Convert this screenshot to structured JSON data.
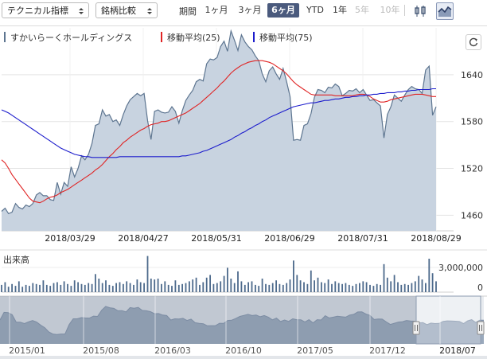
{
  "toolbar": {
    "technical": "テクニカル指標",
    "compare": "銘柄比較",
    "period_label": "期間",
    "periods": [
      {
        "label": "1ヶ月",
        "state": "normal"
      },
      {
        "label": "3ヶ月",
        "state": "normal"
      },
      {
        "label": "6ヶ月",
        "state": "active"
      },
      {
        "label": "YTD",
        "state": "normal"
      },
      {
        "label": "1年",
        "state": "normal"
      },
      {
        "label": "5年",
        "state": "disabled"
      },
      {
        "label": "10年",
        "state": "disabled"
      }
    ],
    "chart_type_icons": [
      "candlestick-icon",
      "area-chart-icon"
    ],
    "active_chart_type": "area-chart-icon",
    "refresh_icon": "refresh-icon"
  },
  "colors": {
    "price": "#5d7590",
    "area_fill": "#c8d3e0",
    "ma25": "#e02424",
    "ma75": "#1c1ccc",
    "volume": "#4d6a8c",
    "active_tab": "#4a5a7d"
  },
  "chart_data": [
    {
      "type": "area",
      "legend": [
        {
          "name": "すかいらーくホールディングス",
          "color": "#5d7590"
        },
        {
          "name": "移動平均(25)",
          "color": "#e02424"
        },
        {
          "name": "移動平均(75)",
          "color": "#1c1ccc"
        }
      ],
      "x_ticks": [
        "2018/03/29",
        "2018/04/27",
        "2018/05/31",
        "2018/06/29",
        "2018/07/31",
        "2018/08/29"
      ],
      "y_ticks": [
        1460,
        1520,
        1580,
        1640
      ],
      "ylim": [
        1440,
        1700
      ],
      "series": [
        {
          "name": "すかいらーくホールディングス",
          "values": [
            1465,
            1469,
            1462,
            1464,
            1475,
            1470,
            1468,
            1473,
            1471,
            1475,
            1486,
            1489,
            1485,
            1485,
            1480,
            1479,
            1502,
            1487,
            1502,
            1497,
            1522,
            1509,
            1520,
            1536,
            1531,
            1538,
            1552,
            1575,
            1577,
            1595,
            1587,
            1589,
            1580,
            1582,
            1575,
            1589,
            1600,
            1608,
            1612,
            1616,
            1613,
            1616,
            1581,
            1557,
            1593,
            1595,
            1592,
            1591,
            1592,
            1599,
            1593,
            1578,
            1594,
            1607,
            1614,
            1620,
            1631,
            1634,
            1632,
            1654,
            1660,
            1659,
            1662,
            1676,
            1683,
            1670,
            1696,
            1684,
            1671,
            1691,
            1682,
            1676,
            1672,
            1664,
            1658,
            1641,
            1631,
            1645,
            1650,
            1641,
            1634,
            1648,
            1631,
            1612,
            1556,
            1557,
            1556,
            1575,
            1577,
            1590,
            1611,
            1621,
            1620,
            1617,
            1624,
            1623,
            1628,
            1625,
            1613,
            1616,
            1620,
            1619,
            1622,
            1617,
            1621,
            1614,
            1607,
            1608,
            1604,
            1600,
            1559,
            1589,
            1599,
            1614,
            1610,
            1606,
            1614,
            1621,
            1625,
            1622,
            1621,
            1616,
            1646,
            1651,
            1588,
            1599
          ]
        },
        {
          "name": "移動平均(25)",
          "values": [
            1531,
            1527,
            1520,
            1512,
            1506,
            1500,
            1494,
            1488,
            1482,
            1478,
            1477,
            1476,
            1478,
            1481,
            1483,
            1484,
            1486,
            1489,
            1491,
            1493,
            1496,
            1499,
            1502,
            1505,
            1508,
            1511,
            1514,
            1518,
            1521,
            1525,
            1530,
            1535,
            1539,
            1544,
            1548,
            1553,
            1556,
            1560,
            1563,
            1566,
            1569,
            1571,
            1574,
            1576,
            1577,
            1578,
            1580,
            1580,
            1581,
            1583,
            1585,
            1587,
            1589,
            1591,
            1594,
            1597,
            1600,
            1603,
            1607,
            1611,
            1615,
            1619,
            1623,
            1628,
            1632,
            1637,
            1642,
            1646,
            1649,
            1652,
            1654,
            1656,
            1657,
            1658,
            1658,
            1658,
            1657,
            1656,
            1654,
            1651,
            1648,
            1645,
            1641,
            1636,
            1631,
            1627,
            1624,
            1621,
            1618,
            1615,
            1614,
            1614,
            1614,
            1614,
            1614,
            1614,
            1613,
            1613,
            1613,
            1613,
            1613,
            1613,
            1614,
            1615,
            1615,
            1614,
            1612,
            1609,
            1607,
            1605,
            1605,
            1606,
            1608,
            1609,
            1610,
            1611,
            1612,
            1613,
            1614,
            1615,
            1615,
            1615,
            1614,
            1613,
            1612,
            1612
          ]
        },
        {
          "name": "移動平均(75)",
          "values": [
            1595,
            1593,
            1591,
            1588,
            1585,
            1582,
            1579,
            1576,
            1573,
            1570,
            1567,
            1564,
            1561,
            1558,
            1555,
            1552,
            1549,
            1546,
            1544,
            1542,
            1540,
            1538,
            1537,
            1536,
            1535,
            1535,
            1534,
            1534,
            1534,
            1534,
            1534,
            1534,
            1534,
            1534,
            1535,
            1535,
            1535,
            1535,
            1535,
            1535,
            1535,
            1535,
            1535,
            1535,
            1535,
            1535,
            1535,
            1535,
            1535,
            1535,
            1535,
            1535,
            1536,
            1536,
            1537,
            1538,
            1539,
            1540,
            1542,
            1543,
            1545,
            1547,
            1549,
            1551,
            1553,
            1555,
            1557,
            1560,
            1562,
            1565,
            1567,
            1570,
            1572,
            1575,
            1577,
            1580,
            1582,
            1585,
            1587,
            1589,
            1591,
            1593,
            1595,
            1597,
            1599,
            1600,
            1601,
            1602,
            1603,
            1604,
            1604,
            1605,
            1606,
            1607,
            1607,
            1608,
            1609,
            1609,
            1610,
            1611,
            1611,
            1612,
            1612,
            1613,
            1613,
            1614,
            1614,
            1615,
            1615,
            1616,
            1616,
            1617,
            1617,
            1617,
            1618,
            1618,
            1619,
            1619,
            1620,
            1620,
            1621,
            1621,
            1621,
            1621,
            1622,
            1622
          ]
        }
      ]
    },
    {
      "type": "bar",
      "title": "出来高",
      "y_ticks": [
        "3,000,000",
        "0"
      ],
      "values": [
        800000,
        1100000,
        600000,
        900000,
        700000,
        1200000,
        600000,
        800000,
        700000,
        1000000,
        900000,
        800000,
        1300000,
        800000,
        700000,
        1000000,
        1100000,
        800000,
        1200000,
        900000,
        700000,
        1300000,
        1100000,
        900000,
        800000,
        1000000,
        900000,
        2000000,
        1500000,
        1000000,
        1300000,
        800000,
        700000,
        1000000,
        1100000,
        900000,
        1200000,
        1000000,
        800000,
        1400000,
        1100000,
        1000000,
        4000000,
        1500000,
        1400000,
        1500000,
        900000,
        1200000,
        800000,
        700000,
        1300000,
        800000,
        900000,
        1000000,
        1200000,
        1400000,
        1600000,
        800000,
        1100000,
        1600000,
        1900000,
        900000,
        1000000,
        1200000,
        1800000,
        2700000,
        1500000,
        1000000,
        2300000,
        1200000,
        800000,
        1100000,
        1200000,
        800000,
        700000,
        1500000,
        900000,
        800000,
        1000000,
        1300000,
        900000,
        800000,
        1000000,
        1400000,
        3500000,
        1900000,
        1300000,
        1100000,
        900000,
        2400000,
        1300000,
        1600000,
        1100000,
        1000000,
        1400000,
        900000,
        1200000,
        1000000,
        900000,
        1000000,
        800000,
        700000,
        900000,
        1000000,
        1200000,
        1100000,
        800000,
        700000,
        900000,
        800000,
        3100000,
        1600000,
        1200000,
        1900000,
        1100000,
        800000,
        900000,
        800000,
        1000000,
        1200000,
        1800000,
        1400000,
        1000000,
        3700000,
        2100000,
        1200000
      ]
    },
    {
      "type": "area",
      "x_ticks": [
        "2015/01",
        "2015/08",
        "2016/03",
        "2016/10",
        "2017/05",
        "2017/12",
        "2018/07"
      ],
      "selected_range": [
        "2018/03/29",
        "2018/09"
      ],
      "values": [
        1620,
        1665,
        1663,
        1651,
        1607,
        1607,
        1599,
        1609,
        1617,
        1608,
        1590,
        1575,
        1550,
        1538,
        1535,
        1538,
        1538,
        1593,
        1627,
        1627,
        1634,
        1632,
        1631,
        1643,
        1641,
        1677,
        1700,
        1692,
        1688,
        1674,
        1675,
        1667,
        1693,
        1689,
        1694,
        1676,
        1674,
        1669,
        1657,
        1658,
        1649,
        1646,
        1620,
        1627,
        1626,
        1630,
        1617,
        1625,
        1604,
        1600,
        1598,
        1586,
        1587,
        1587,
        1601,
        1600,
        1617,
        1619,
        1629,
        1641,
        1647,
        1653,
        1646,
        1649,
        1639,
        1646,
        1637,
        1621,
        1631,
        1611,
        1620,
        1612,
        1627,
        1622,
        1621,
        1609,
        1622,
        1603,
        1622,
        1620,
        1645,
        1632,
        1637,
        1642,
        1639,
        1637,
        1649,
        1653,
        1667,
        1668,
        1655,
        1647,
        1623,
        1626,
        1625,
        1609,
        1594,
        1601,
        1608,
        1610,
        1617,
        1614,
        1613,
        1603,
        1605,
        1593,
        1602,
        1599,
        1600,
        1612,
        1615,
        1614,
        1613,
        1611,
        1599,
        1615,
        1622,
        1606,
        1619,
        1619
      ]
    }
  ]
}
